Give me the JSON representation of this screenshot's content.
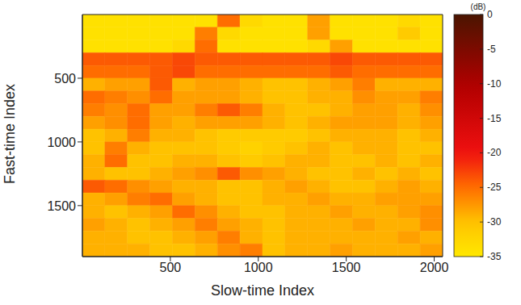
{
  "chart_data": {
    "type": "heatmap",
    "xlabel": "Slow-time Index",
    "ylabel": "Fast-time Index",
    "xlim": [
      0,
      2048
    ],
    "ylim": [
      0,
      1900
    ],
    "xticks": [
      500,
      1000,
      1500,
      2000
    ],
    "yticks": [
      500,
      1000,
      1500
    ],
    "grid": false,
    "x_edges": [
      0,
      128,
      256,
      384,
      512,
      640,
      768,
      896,
      1024,
      1152,
      1280,
      1408,
      1536,
      1664,
      1792,
      1920,
      2048
    ],
    "y_edges": [
      0,
      100,
      200,
      300,
      400,
      500,
      600,
      700,
      800,
      900,
      1000,
      1100,
      1200,
      1300,
      1400,
      1500,
      1600,
      1700,
      1800,
      1900
    ],
    "cells": [
      [
        -34,
        -34,
        -34,
        -34,
        -34,
        -34,
        -25,
        -33,
        -34,
        -34,
        -28,
        -34,
        -34,
        -34,
        -33,
        -34
      ],
      [
        -34,
        -34,
        -34,
        -34,
        -34,
        -26,
        -33,
        -34,
        -34,
        -34,
        -28,
        -34,
        -34,
        -34,
        -31,
        -34
      ],
      [
        -34,
        -34,
        -34,
        -34,
        -33,
        -25,
        -34,
        -34,
        -34,
        -34,
        -33,
        -28,
        -34,
        -34,
        -34,
        -34
      ],
      [
        -24,
        -24,
        -24,
        -24,
        -23,
        -24,
        -24,
        -24,
        -24,
        -24,
        -24,
        -23,
        -24,
        -24,
        -24,
        -24
      ],
      [
        -25,
        -25,
        -25,
        -24,
        -23,
        -25,
        -25,
        -25,
        -25,
        -25,
        -25,
        -24,
        -25,
        -25,
        -25,
        -25
      ],
      [
        -29,
        -28,
        -28,
        -24,
        -29,
        -28,
        -28,
        -29,
        -30,
        -30,
        -29,
        -28,
        -26,
        -29,
        -29,
        -29
      ],
      [
        -25,
        -26,
        -27,
        -25,
        -28,
        -28,
        -28,
        -29,
        -30,
        -30,
        -29,
        -29,
        -27,
        -28,
        -28,
        -26
      ],
      [
        -26,
        -27,
        -25,
        -28,
        -28,
        -26,
        -24,
        -26,
        -29,
        -30,
        -30,
        -29,
        -28,
        -28,
        -29,
        -27
      ],
      [
        -28,
        -27,
        -25,
        -28,
        -29,
        -28,
        -28,
        -28,
        -29,
        -30,
        -29,
        -28,
        -28,
        -28,
        -29,
        -28
      ],
      [
        -30,
        -29,
        -26,
        -29,
        -29,
        -30,
        -31,
        -31,
        -31,
        -31,
        -30,
        -29,
        -29,
        -29,
        -30,
        -29
      ],
      [
        -30,
        -26,
        -29,
        -30,
        -30,
        -30,
        -31,
        -32,
        -31,
        -30,
        -29,
        -30,
        -29,
        -29,
        -30,
        -30
      ],
      [
        -29,
        -25,
        -30,
        -30,
        -29,
        -29,
        -30,
        -31,
        -30,
        -29,
        -29,
        -30,
        -30,
        -29,
        -30,
        -29
      ],
      [
        -29,
        -30,
        -30,
        -29,
        -28,
        -27,
        -24,
        -27,
        -28,
        -29,
        -30,
        -30,
        -29,
        -30,
        -29,
        -30
      ],
      [
        -24,
        -25,
        -27,
        -28,
        -29,
        -29,
        -30,
        -30,
        -29,
        -28,
        -29,
        -30,
        -30,
        -29,
        -28,
        -29
      ],
      [
        -29,
        -28,
        -26,
        -25,
        -28,
        -29,
        -30,
        -30,
        -29,
        -29,
        -28,
        -29,
        -29,
        -28,
        -28,
        -28
      ],
      [
        -29,
        -30,
        -29,
        -28,
        -25,
        -27,
        -29,
        -30,
        -30,
        -29,
        -29,
        -28,
        -29,
        -29,
        -28,
        -27
      ],
      [
        -28,
        -29,
        -30,
        -29,
        -28,
        -26,
        -28,
        -29,
        -30,
        -29,
        -29,
        -29,
        -28,
        -29,
        -29,
        -27
      ],
      [
        -29,
        -29,
        -30,
        -30,
        -29,
        -28,
        -26,
        -29,
        -30,
        -29,
        -29,
        -29,
        -29,
        -29,
        -28,
        -29
      ],
      [
        -29,
        -29,
        -29,
        -30,
        -30,
        -29,
        -27,
        -26,
        -30,
        -29,
        -29,
        -28,
        -29,
        -29,
        -29,
        -28
      ]
    ],
    "colorbar_label": "(dB)",
    "colorbar_range": [
      -35,
      0
    ],
    "colorbar_ticks": [
      0,
      -5,
      -10,
      -15,
      -20,
      -25,
      -30,
      -35
    ]
  }
}
